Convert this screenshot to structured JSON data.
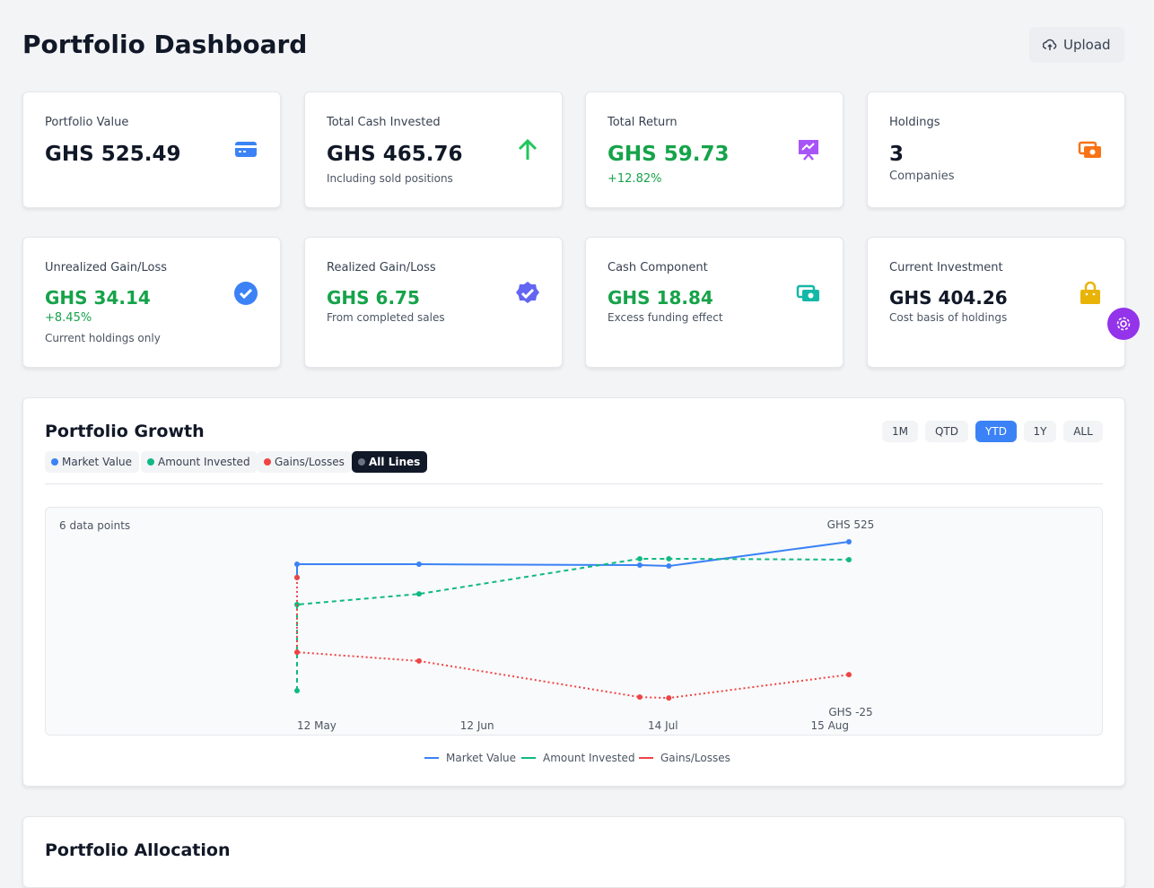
{
  "header": {
    "title": "Portfolio Dashboard",
    "upload": "Upload"
  },
  "cards": [
    {
      "label": "Portfolio Value",
      "value": "GHS 525.49",
      "notes": []
    },
    {
      "label": "Total Cash Invested",
      "value": "GHS 465.76",
      "notes": [
        "Including sold positions"
      ]
    },
    {
      "label": "Total Return",
      "value": "GHS 59.73",
      "notes": [
        "+12.82%"
      ]
    },
    {
      "label": "Holdings",
      "value": "3",
      "notes": [
        "Companies"
      ]
    },
    {
      "label": "Unrealized Gain/Loss",
      "value": "GHS 34.14",
      "notes": [
        "+8.45%",
        "Current holdings only"
      ]
    },
    {
      "label": "Realized Gain/Loss",
      "value": "GHS 6.75",
      "notes": [
        "From completed sales"
      ]
    },
    {
      "label": "Cash Component",
      "value": "GHS 18.84",
      "notes": [
        "Excess funding effect"
      ]
    },
    {
      "label": "Current Investment",
      "value": "GHS 404.26",
      "notes": [
        "Cost basis of holdings"
      ]
    }
  ],
  "growth": {
    "title": "Portfolio Growth",
    "ranges": [
      "1M",
      "QTD",
      "YTD",
      "1Y",
      "ALL"
    ],
    "selected_range": "YTD",
    "filters": [
      "Market Value",
      "Amount Invested",
      "Gains/Losses",
      "All Lines"
    ]
  },
  "chart_data": {
    "type": "line",
    "annotation": "6 data points",
    "x": [
      "12 May",
      "12 May",
      "2 Jun",
      "10 Jul",
      "15 Jul",
      "15 Aug"
    ],
    "xticks": [
      "12 May",
      "12 Jun",
      "14 Jul",
      "15 Aug"
    ],
    "ylim": [
      -25,
      525
    ],
    "yticks": [
      {
        "value": 525,
        "label": "GHS 525"
      },
      {
        "value": -25,
        "label": "GHS -25"
      }
    ],
    "series": [
      {
        "name": "Market Value",
        "color": "#3b82f6",
        "dash": "solid",
        "values": [
          407,
          451,
          451,
          448,
          445,
          525
        ]
      },
      {
        "name": "Amount Invested",
        "color": "#10b981",
        "dash": "dashed",
        "values": [
          34,
          318,
          353,
          469,
          469,
          466
        ]
      },
      {
        "name": "Gains/Losses",
        "color": "#ef4444",
        "dash": "dotted",
        "values": [
          407,
          161,
          132,
          13,
          10,
          87
        ]
      }
    ]
  },
  "allocation": {
    "title": "Portfolio Allocation"
  }
}
